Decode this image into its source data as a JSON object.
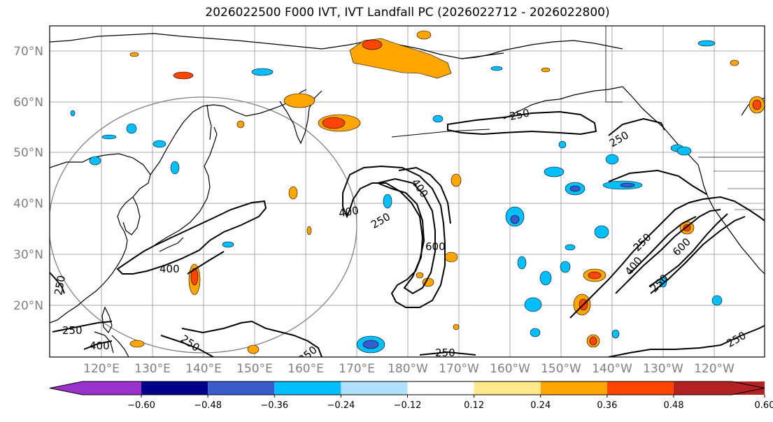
{
  "title": "2026022500 F000 IVT, IVT Landfall PC (2026022712 - 2026022800)",
  "lat_labels": [
    "70°N",
    "60°N",
    "50°N",
    "40°N",
    "30°N",
    "20°N"
  ],
  "lon_labels": [
    "120°E",
    "130°E",
    "140°E",
    "150°E",
    "160°E",
    "170°E",
    "180°W",
    "170°W",
    "160°W",
    "150°W",
    "140°W",
    "130°W",
    "120°W"
  ],
  "colorbar": {
    "ticks": [
      "−0.60",
      "−0.48",
      "−0.36",
      "−0.24",
      "−0.12",
      "0.12",
      "0.24",
      "0.36",
      "0.48",
      "0.60"
    ],
    "colors": [
      "#9932cc",
      "#00008b",
      "#3a5bcc",
      "#00bfff",
      "#b0e0ff",
      "#ffffff",
      "#ffe88a",
      "#ffa500",
      "#ff4500",
      "#b22222",
      "#ff88b0"
    ]
  },
  "contour_labels": [
    "250",
    "400",
    "250",
    "400",
    "250",
    "600",
    "250",
    "250",
    "400",
    "250",
    "600",
    "250",
    "250",
    "400",
    "250",
    "250",
    "250",
    "400"
  ]
}
